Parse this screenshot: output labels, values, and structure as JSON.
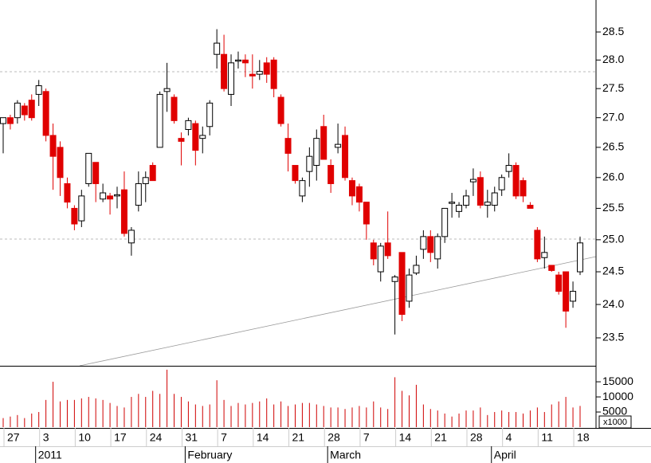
{
  "chart_data": {
    "type": "candlestick",
    "yscale": "log",
    "ylim": [
      23.09,
      29.08
    ],
    "yticks": [
      23.5,
      {
        "value": 24,
        "label": "24.0"
      },
      24.5,
      {
        "value": 25,
        "label": "25.0"
      },
      25.5,
      {
        "value": 26,
        "label": "26.0"
      },
      26.5,
      {
        "value": 27,
        "label": "27.0"
      },
      27.5,
      {
        "value": 28,
        "label": "28.0"
      },
      28.5
    ],
    "up_color": "#ffffff",
    "down_color": "#e00000",
    "categories": [
      "27",
      null,
      null,
      null,
      null,
      "3",
      null,
      null,
      null,
      null,
      "10",
      null,
      null,
      null,
      null,
      "17",
      null,
      null,
      null,
      null,
      "24",
      null,
      null,
      null,
      null,
      "31",
      null,
      null,
      null,
      null,
      "7",
      null,
      null,
      null,
      null,
      "14",
      null,
      null,
      null,
      null,
      "21",
      null,
      null,
      null,
      null,
      "28",
      null,
      null,
      null,
      null,
      "7",
      null,
      null,
      null,
      null,
      "14",
      null,
      null,
      null,
      null,
      "21",
      null,
      null,
      null,
      null,
      "28",
      null,
      null,
      null,
      null,
      "4",
      null,
      null,
      null,
      null,
      "11",
      null,
      null,
      null,
      null,
      "18",
      null
    ],
    "months": [
      null,
      null,
      null,
      null,
      null,
      "2011",
      null,
      null,
      null,
      null,
      null,
      null,
      null,
      null,
      null,
      null,
      null,
      null,
      null,
      null,
      null,
      null,
      null,
      null,
      null,
      null,
      "February",
      null,
      null,
      null,
      null,
      null,
      null,
      null,
      null,
      null,
      null,
      null,
      null,
      null,
      null,
      null,
      null,
      null,
      null,
      null,
      "March",
      null,
      null,
      null,
      null,
      null,
      null,
      null,
      null,
      null,
      null,
      null,
      null,
      null,
      null,
      null,
      null,
      null,
      null,
      null,
      null,
      null,
      null,
      "April",
      null,
      null,
      null,
      null,
      null,
      null,
      null,
      null,
      null,
      null,
      null,
      null
    ],
    "open": [
      26.9,
      27.0,
      27.0,
      27.2,
      27.3,
      27.4,
      27.45,
      26.7,
      26.5,
      25.9,
      25.5,
      25.3,
      25.9,
      26.25,
      25.65,
      25.7,
      25.7,
      25.8,
      24.95,
      25.55,
      25.9,
      26.2,
      26.5,
      27.45,
      27.35,
      26.65,
      26.8,
      26.9,
      26.65,
      26.85,
      28.1,
      28.1,
      27.4,
      27.98,
      28.0,
      27.75,
      27.75,
      27.95,
      28.0,
      27.35,
      26.65,
      26.2,
      25.7,
      26.1,
      26.2,
      26.85,
      26.2,
      26.5,
      26.7,
      25.95,
      25.85,
      25.6,
      24.95,
      24.5,
      24.95,
      24.35,
      24.8,
      24.05,
      24.48,
      24.85,
      25.05,
      24.7,
      25.05,
      25.58,
      25.45,
      25.55,
      25.93,
      26.0,
      25.55,
      25.55,
      25.8,
      26.1,
      26.2,
      25.95,
      25.55,
      25.15,
      24.72,
      24.6,
      24.45,
      24.5,
      24.05,
      24.5
    ],
    "high": [
      27.0,
      27.05,
      27.3,
      27.25,
      27.4,
      27.65,
      27.5,
      26.9,
      26.6,
      26.0,
      25.55,
      25.8,
      26.4,
      26.25,
      25.9,
      25.75,
      25.85,
      26.1,
      25.2,
      26.1,
      26.1,
      26.25,
      27.45,
      27.95,
      27.4,
      26.75,
      27.0,
      26.95,
      26.85,
      27.3,
      28.55,
      28.45,
      28.1,
      28.15,
      28.1,
      28.1,
      28.0,
      28.05,
      28.05,
      27.4,
      26.9,
      26.2,
      26.0,
      26.5,
      26.8,
      27.05,
      26.3,
      26.9,
      26.85,
      26.0,
      25.9,
      25.6,
      25.0,
      24.95,
      25.45,
      24.45,
      24.8,
      24.55,
      24.75,
      25.15,
      25.15,
      25.1,
      25.5,
      25.75,
      25.6,
      25.8,
      26.15,
      26.1,
      25.8,
      25.85,
      26.05,
      26.4,
      26.25,
      26.0,
      25.6,
      25.2,
      25.05,
      24.6,
      24.5,
      24.5,
      24.35,
      25.05
    ],
    "low": [
      26.4,
      26.8,
      26.9,
      26.95,
      26.95,
      27.2,
      26.6,
      25.8,
      25.7,
      25.5,
      25.15,
      25.2,
      25.85,
      25.6,
      25.6,
      25.4,
      25.5,
      25.05,
      24.75,
      25.45,
      25.6,
      25.95,
      26.5,
      27.1,
      26.9,
      26.2,
      26.7,
      26.2,
      26.4,
      26.7,
      27.85,
      27.45,
      27.2,
      27.85,
      27.7,
      27.5,
      27.65,
      27.6,
      27.35,
      26.85,
      26.1,
      25.9,
      25.6,
      25.85,
      25.95,
      26.3,
      25.75,
      26.4,
      25.95,
      25.55,
      25.45,
      25.0,
      24.6,
      24.35,
      24.7,
      23.55,
      23.75,
      23.95,
      24.45,
      24.7,
      24.65,
      24.55,
      24.95,
      25.35,
      25.35,
      25.5,
      25.7,
      25.5,
      25.35,
      25.45,
      25.7,
      26.0,
      25.65,
      25.6,
      25.5,
      24.65,
      24.55,
      24.5,
      24.15,
      23.65,
      23.95,
      24.45
    ],
    "close": [
      27.0,
      26.9,
      27.25,
      27.05,
      27.0,
      27.55,
      26.7,
      26.35,
      26.0,
      25.6,
      25.25,
      25.7,
      26.4,
      25.9,
      25.75,
      25.65,
      25.72,
      25.1,
      25.15,
      25.9,
      26.0,
      25.95,
      27.4,
      27.5,
      26.95,
      26.6,
      26.95,
      26.45,
      26.7,
      27.25,
      28.3,
      27.5,
      27.95,
      28.0,
      27.95,
      27.72,
      27.8,
      27.75,
      27.5,
      26.9,
      26.4,
      25.95,
      25.95,
      26.35,
      26.65,
      26.3,
      25.9,
      26.55,
      26.0,
      25.7,
      25.6,
      25.25,
      24.7,
      24.9,
      24.75,
      24.42,
      23.85,
      24.45,
      24.6,
      25.05,
      24.8,
      25.05,
      25.5,
      25.6,
      25.55,
      25.7,
      25.97,
      25.55,
      25.6,
      25.75,
      26.0,
      26.2,
      25.7,
      25.7,
      25.5,
      24.7,
      24.8,
      24.52,
      24.2,
      23.9,
      24.2,
      24.95
    ],
    "volume": {
      "values": [
        3000,
        3500,
        4000,
        3000,
        4500,
        5000,
        9000,
        15000,
        8500,
        9000,
        9000,
        9500,
        10000,
        9500,
        9000,
        8000,
        7000,
        6500,
        10000,
        11000,
        10000,
        12000,
        11000,
        19000,
        11000,
        10000,
        8500,
        7500,
        7000,
        7500,
        15500,
        9000,
        7000,
        8000,
        7500,
        8000,
        8500,
        9500,
        7500,
        8500,
        7000,
        7500,
        8000,
        8000,
        7500,
        7000,
        6500,
        6500,
        6000,
        6500,
        7000,
        6500,
        8500,
        6500,
        6000,
        16500,
        12000,
        10500,
        14000,
        7500,
        6000,
        5500,
        4500,
        3500,
        4500,
        5500,
        5500,
        6500,
        4000,
        5000,
        5500,
        5000,
        5000,
        4500,
        5500,
        6500,
        5000,
        7500,
        8500,
        10000,
        6500,
        7000
      ],
      "color": "#d00000",
      "ylim": [
        0,
        19500
      ],
      "yticks": [
        5000,
        10000,
        15000
      ],
      "unit_label": "x1000"
    }
  }
}
